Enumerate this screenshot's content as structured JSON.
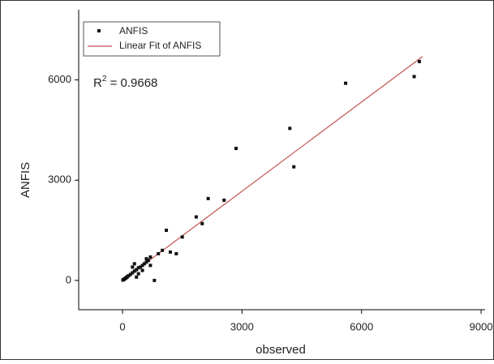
{
  "chart_data": {
    "type": "scatter",
    "xlabel": "observed",
    "ylabel": "ANFIS",
    "xlim": [
      -1100,
      9100
    ],
    "ylim": [
      -875,
      8100
    ],
    "xticks": [
      0,
      3000,
      6000,
      9000
    ],
    "yticks": [
      0,
      3000,
      6000
    ],
    "legend": "upper left",
    "annotation": {
      "base": "R",
      "sup": "2",
      "text": " = 0.9668"
    },
    "series": [
      {
        "name": "ANFIS",
        "color": "#111111",
        "x": [
          7450,
          7320,
          5600,
          4200,
          4300,
          2850,
          2550,
          2150,
          1850,
          2000,
          1500,
          1100,
          1350,
          1200,
          800,
          900,
          1000,
          700,
          650,
          600,
          550,
          500,
          450,
          400,
          350,
          300,
          250,
          200,
          150,
          120,
          100,
          80,
          60,
          40,
          20,
          10,
          300,
          500,
          400,
          700,
          600,
          250,
          350
        ],
        "y": [
          6550,
          6100,
          5900,
          4550,
          3400,
          3950,
          2400,
          2450,
          1900,
          1700,
          1300,
          1500,
          800,
          850,
          0,
          800,
          900,
          700,
          600,
          550,
          500,
          450,
          400,
          380,
          320,
          280,
          230,
          180,
          140,
          110,
          90,
          70,
          50,
          40,
          20,
          10,
          500,
          300,
          200,
          450,
          650,
          400,
          100
        ]
      },
      {
        "name": "Linear Fit of ANFIS",
        "color": "#c0504d",
        "x": [
          0,
          7530
        ],
        "y": [
          0,
          6700
        ]
      }
    ]
  }
}
